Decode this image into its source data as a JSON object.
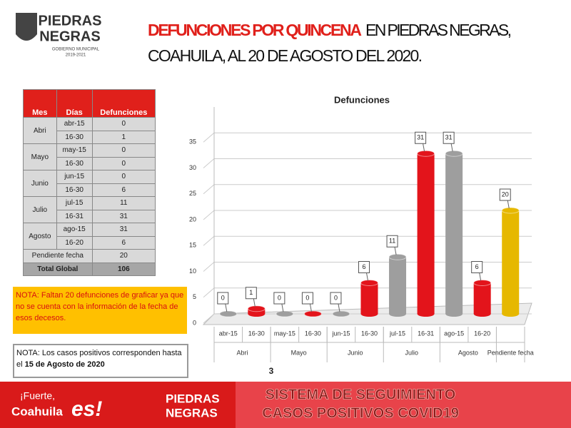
{
  "header": {
    "logo_line1": "PIEDRAS",
    "logo_line2": "NEGRAS",
    "logo_sub": "GOBIERNO MUNICIPAL",
    "logo_years": "2019-2021",
    "title_highlight": "DEFUNCIONES POR QUINCENA",
    "title_rest": "EN PIEDRAS NEGRAS,",
    "title_line2": "COAHUILA, AL 20 DE AGOSTO DEL 2020."
  },
  "table": {
    "headers": [
      "Mes",
      "Días",
      "Defunciones"
    ],
    "groups": [
      {
        "month": "Abri",
        "rows": [
          [
            "abr-15",
            0
          ],
          [
            "16-30",
            1
          ]
        ]
      },
      {
        "month": "Mayo",
        "rows": [
          [
            "may-15",
            0
          ],
          [
            "16-30",
            0
          ]
        ]
      },
      {
        "month": "Junio",
        "rows": [
          [
            "jun-15",
            0
          ],
          [
            "16-30",
            6
          ]
        ]
      },
      {
        "month": "Julio",
        "rows": [
          [
            "jul-15",
            11
          ],
          [
            "16-31",
            31
          ]
        ]
      },
      {
        "month": "Agosto",
        "rows": [
          [
            "ago-15",
            31
          ],
          [
            "16-20",
            6
          ]
        ]
      }
    ],
    "pending": [
      "Pendiente fecha",
      20
    ],
    "total": [
      "Total Global",
      106
    ]
  },
  "notes": {
    "missing": "NOTA: Faltan 20 defunciones de graficar ya que no se cuenta  con la información de la fecha de esos decesos.",
    "cutoff": "NOTA: Los casos positivos corresponden hasta el",
    "cutoff_date": "15 de Agosto de 2020"
  },
  "chart_data": {
    "type": "bar",
    "title": "Defunciones",
    "categories": [
      "abr-15",
      "16-30",
      "may-15",
      "16-30",
      "jun-15",
      "16-30",
      "jul-15",
      "16-31",
      "ago-15",
      "16-20",
      null
    ],
    "groups": [
      {
        "name": "Abri",
        "size": 2
      },
      {
        "name": "Mayo",
        "size": 2
      },
      {
        "name": "Junio",
        "size": 2
      },
      {
        "name": "Julio",
        "size": 2
      },
      {
        "name": "Agosto",
        "size": 2
      },
      {
        "name": "Pendiente fecha",
        "size": 1
      }
    ],
    "values": [
      0,
      1,
      0,
      0,
      0,
      6,
      11,
      31,
      31,
      6,
      20
    ],
    "colors": [
      "#9e9e9e",
      "#e3141b",
      "#9e9e9e",
      "#e3141b",
      "#9e9e9e",
      "#e3141b",
      "#9e9e9e",
      "#e3141b",
      "#9e9e9e",
      "#e3141b",
      "#e6b800"
    ],
    "ylim": [
      0,
      40
    ],
    "yticks": [
      0,
      5,
      10,
      15,
      20,
      25,
      30,
      35
    ],
    "grid": true
  },
  "page_number": "3",
  "footer": {
    "slogan_1": "¡Fuerte,",
    "slogan_2": "Coahuila",
    "slogan_3": "es!",
    "logo_1": "PIEDRAS",
    "logo_2": "NEGRAS",
    "banner_1": "SISTEMA DE SEGUIMIENTO",
    "banner_2": "CASOS POSITIVOS COVID19"
  }
}
